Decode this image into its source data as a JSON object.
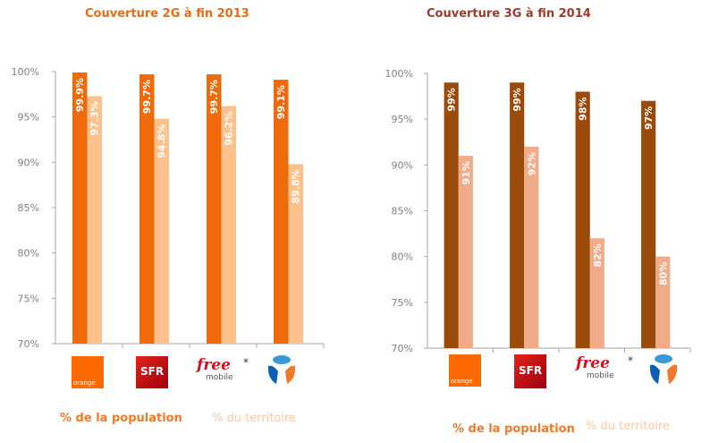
{
  "colors": {
    "orange_title": "#E96B10",
    "brown_title": "#9E3A2E",
    "pop_2g": "#EE6A0A",
    "terr_2g": "#FFC18C",
    "pop_3g": "#9A4A0A",
    "terr_3g": "#F0AB88",
    "legend_pop": "#EE7A2A",
    "legend_terr": "#FFC8A0"
  },
  "operators": [
    "Orange",
    "SFR",
    "Free Mobile",
    "Bouygues Telecom"
  ],
  "logos": {
    "orange_text": "orange",
    "sfr_text": "SFR",
    "free_text": "free",
    "free_sub": "mobile",
    "free_star": "*"
  },
  "chart_data": [
    {
      "type": "bar",
      "title": "Couverture 2G à fin 2013",
      "categories": [
        "Orange",
        "SFR",
        "Free Mobile*",
        "Bouygues Telecom"
      ],
      "series": [
        {
          "name": "% de la population",
          "values": [
            99.9,
            99.7,
            99.7,
            99.1
          ],
          "labels": [
            "99.9%",
            "99.7%",
            "99.7%",
            "99.1%"
          ]
        },
        {
          "name": "% du territoire",
          "values": [
            97.3,
            94.8,
            96.2,
            89.8
          ],
          "labels": [
            "97.3%",
            "94.8%",
            "96.2%",
            "89.8%"
          ]
        }
      ],
      "yticks": [
        "100%",
        "95%",
        "90%",
        "85%",
        "80%",
        "75%",
        "70%"
      ],
      "ylim": [
        70,
        100
      ],
      "xlabel": "",
      "ylabel": "",
      "grid": false,
      "legend": "bottom"
    },
    {
      "type": "bar",
      "title": "Couverture 3G à fin 2014",
      "categories": [
        "Orange",
        "SFR",
        "Free Mobile*",
        "Bouygues Telecom"
      ],
      "series": [
        {
          "name": "% de la population",
          "values": [
            99,
            99,
            98,
            97
          ],
          "labels": [
            "99%",
            "99%",
            "98%",
            "97%"
          ]
        },
        {
          "name": "% du territoire",
          "values": [
            91,
            92,
            82,
            80
          ],
          "labels": [
            "91%",
            "92%",
            "82%",
            "80%"
          ]
        }
      ],
      "yticks": [
        "100%",
        "95%",
        "90%",
        "85%",
        "80%",
        "75%",
        "70%"
      ],
      "ylim": [
        70,
        100
      ],
      "xlabel": "",
      "ylabel": "",
      "grid": false,
      "legend": "bottom"
    }
  ]
}
